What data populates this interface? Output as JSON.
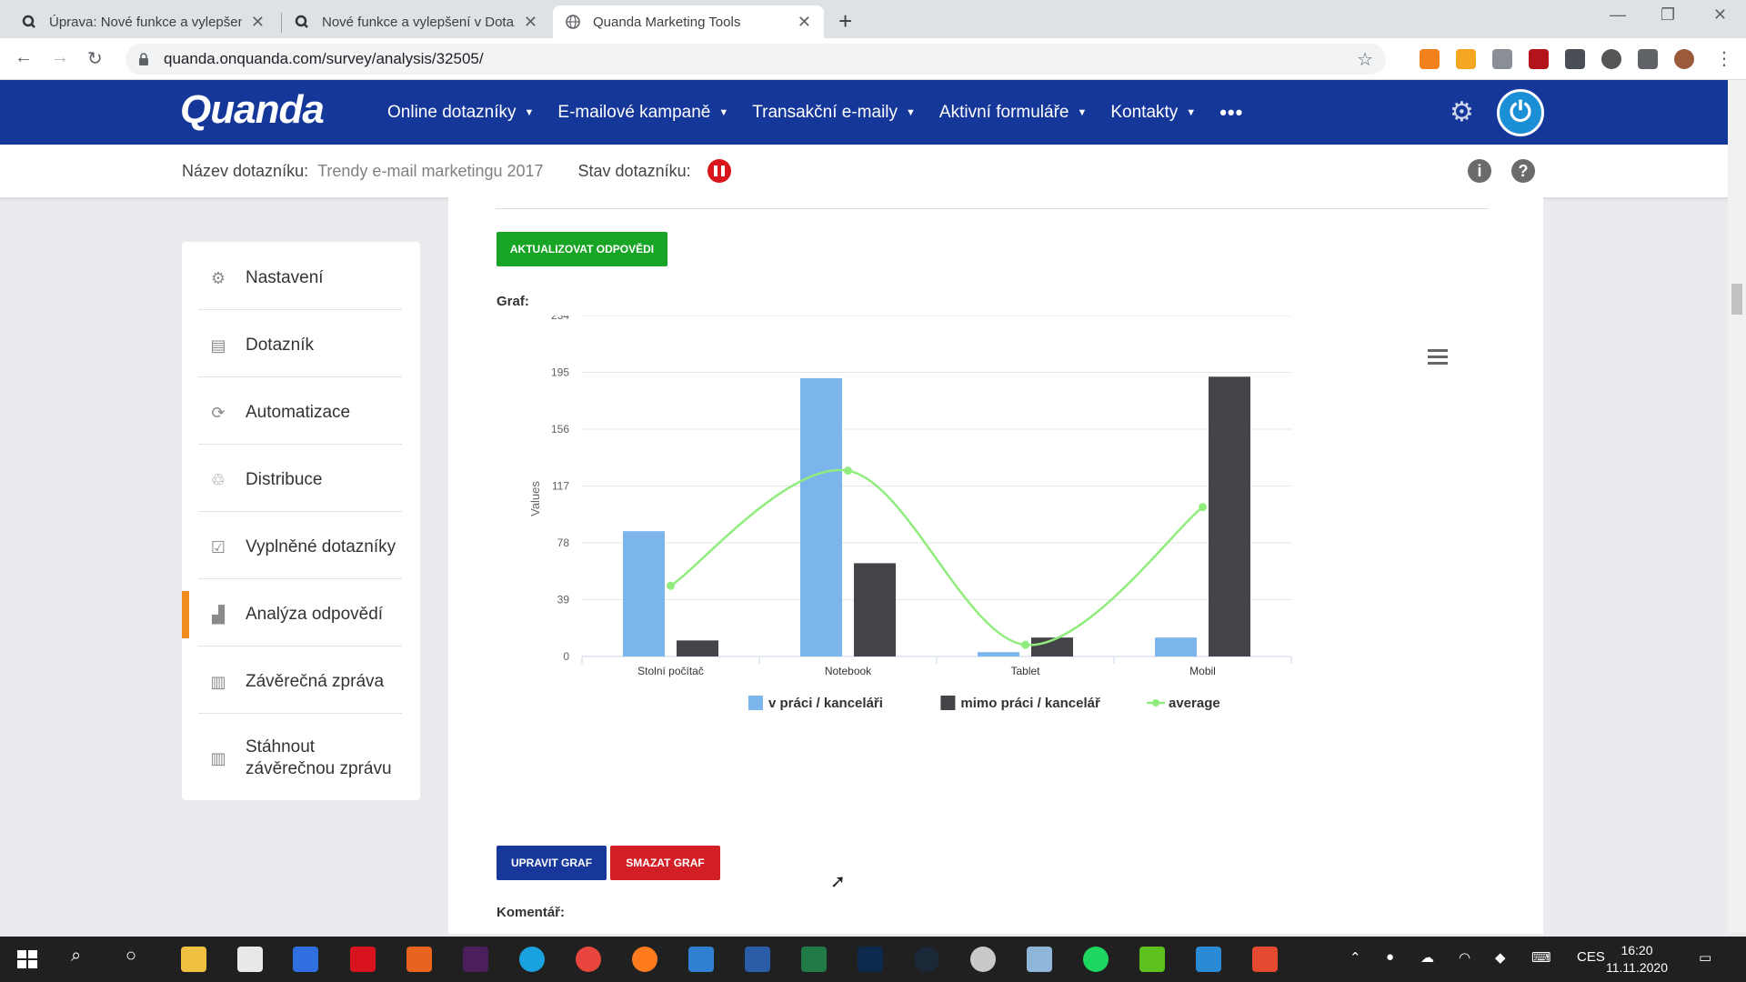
{
  "browser": {
    "tabs": [
      {
        "title": "Úprava: Nové funkce a vylepšení",
        "active": false
      },
      {
        "title": "Nové funkce a vylepšení v Dotazn",
        "active": false
      },
      {
        "title": "Quanda Marketing Tools",
        "active": true
      }
    ],
    "url": "quanda.onquanda.com/survey/analysis/32505/"
  },
  "app": {
    "logo": "Quanda",
    "nav": [
      {
        "label": "Online dotazníky"
      },
      {
        "label": "E-mailové kampaně"
      },
      {
        "label": "Transakční e-maily"
      },
      {
        "label": "Aktivní formuláře"
      },
      {
        "label": "Kontakty"
      }
    ],
    "more": "•••",
    "brand_color": "#15379a"
  },
  "survey": {
    "name_label": "Název dotazníku:",
    "name_value": "Trendy e-mail marketingu 2017",
    "status_label": "Stav dotazníku:"
  },
  "sidebar": {
    "items": [
      {
        "label": "Nastavení",
        "icon": "gear-icon"
      },
      {
        "label": "Dotazník",
        "icon": "document-icon"
      },
      {
        "label": "Automatizace",
        "icon": "refresh-icon"
      },
      {
        "label": "Distribuce",
        "icon": "distribution-icon"
      },
      {
        "label": "Vyplněné dotazníky",
        "icon": "checklist-icon"
      },
      {
        "label": "Analýza odpovědí",
        "icon": "bar-chart-icon"
      },
      {
        "label": "Závěrečná zpráva",
        "icon": "report-icon"
      },
      {
        "label": "Stáhnout",
        "label2": "závěrečnou zprávu",
        "icon": "download-report-icon"
      }
    ],
    "active_index": 5,
    "active_color": "#f08b1f"
  },
  "main": {
    "update_button": "AKTUALIZOVAT ODPOVĚDI",
    "graph_label": "Graf:",
    "edit_button": "UPRAVIT GRAF",
    "delete_button": "SMAZAT GRAF",
    "comment_label": "Komentář:"
  },
  "chart_data": {
    "type": "bar",
    "categories": [
      "Stolní počítač",
      "Notebook",
      "Tablet",
      "Mobil"
    ],
    "series": [
      {
        "name": "v práci / kanceláři",
        "type": "bar",
        "color": "#7cb5ec",
        "values": [
          86,
          191,
          3,
          13
        ]
      },
      {
        "name": "mimo práci / kancelář",
        "type": "bar",
        "color": "#434348",
        "values": [
          11,
          64,
          13,
          192
        ]
      },
      {
        "name": "average",
        "type": "spline",
        "color": "#90ed7d",
        "values": [
          48.5,
          127.5,
          8,
          102.5
        ]
      }
    ],
    "ylabel": "Values",
    "yticks": [
      0,
      39,
      78,
      117,
      156,
      195,
      234
    ],
    "ylim": [
      0,
      234
    ],
    "grid": true,
    "legend": "bottom-center"
  },
  "taskbar": {
    "lang": "CES",
    "time": "16:20",
    "date": "11.11.2020"
  }
}
